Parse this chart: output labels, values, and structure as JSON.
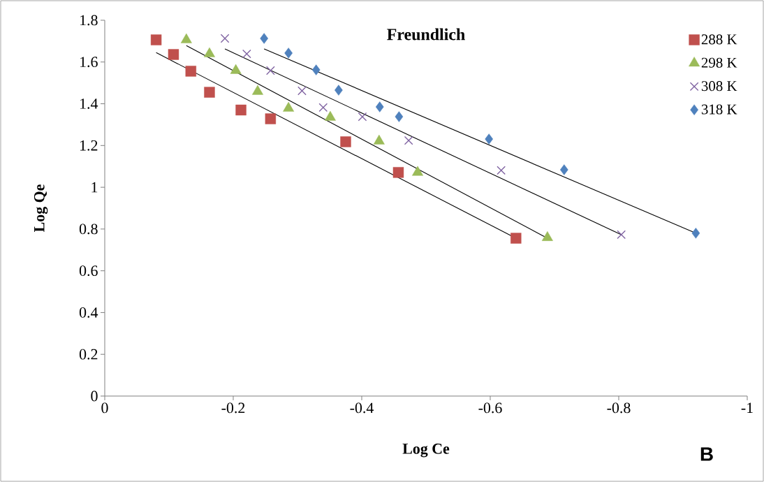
{
  "chart_data": {
    "type": "scatter",
    "title": "Freundlich",
    "xlabel": "Log Ce",
    "ylabel": "Log Qe",
    "xlim": [
      0,
      -1
    ],
    "xticks": [
      0,
      -0.2,
      -0.4,
      -0.6,
      -0.8,
      -1
    ],
    "ylim": [
      0,
      1.8
    ],
    "yticks": [
      0,
      0.2,
      0.4,
      0.6,
      0.8,
      1,
      1.2,
      1.4,
      1.6,
      1.8
    ],
    "grid": false,
    "legend": "top right",
    "annotations": [
      "B"
    ],
    "series": [
      {
        "name": "288 K",
        "color": "#c0504d",
        "marker": "square",
        "x": [
          -0.08,
          -0.107,
          -0.134,
          -0.163,
          -0.212,
          -0.258,
          -0.375,
          -0.457,
          -0.64
        ],
        "values": [
          1.706,
          1.636,
          1.556,
          1.455,
          1.37,
          1.328,
          1.218,
          1.071,
          0.756
        ]
      },
      {
        "name": "298 K",
        "color": "#9bbb59",
        "marker": "triangle",
        "x": [
          -0.127,
          -0.163,
          -0.204,
          -0.238,
          -0.286,
          -0.351,
          -0.427,
          -0.487,
          -0.689
        ],
        "values": [
          1.706,
          1.639,
          1.559,
          1.459,
          1.378,
          1.335,
          1.221,
          1.071,
          0.759
        ]
      },
      {
        "name": "308 K",
        "color": "#8064a2",
        "marker": "cross",
        "x": [
          -0.187,
          -0.221,
          -0.258,
          -0.307,
          -0.34,
          -0.401,
          -0.473,
          -0.617,
          -0.804
        ],
        "values": [
          1.713,
          1.639,
          1.559,
          1.462,
          1.382,
          1.338,
          1.224,
          1.081,
          0.773
        ]
      },
      {
        "name": "318 K",
        "color": "#4f81bd",
        "marker": "diamond",
        "x": [
          -0.248,
          -0.286,
          -0.329,
          -0.364,
          -0.428,
          -0.458,
          -0.598,
          -0.715,
          -0.92
        ],
        "values": [
          1.713,
          1.643,
          1.562,
          1.465,
          1.385,
          1.338,
          1.231,
          1.084,
          0.78
        ]
      },
      {
        "type": "line",
        "color": "#000000",
        "marker": "none",
        "x": [
          -0.08,
          -0.64
        ],
        "values": [
          1.645,
          0.756
        ]
      },
      {
        "type": "line",
        "color": "#000000",
        "marker": "none",
        "x": [
          -0.127,
          -0.689
        ],
        "values": [
          1.679,
          0.756
        ]
      },
      {
        "type": "line",
        "color": "#000000",
        "marker": "none",
        "x": [
          -0.187,
          -0.804
        ],
        "values": [
          1.663,
          0.773
        ]
      },
      {
        "type": "line",
        "color": "#000000",
        "marker": "none",
        "x": [
          -0.248,
          -0.92
        ],
        "values": [
          1.663,
          0.78
        ]
      }
    ]
  }
}
